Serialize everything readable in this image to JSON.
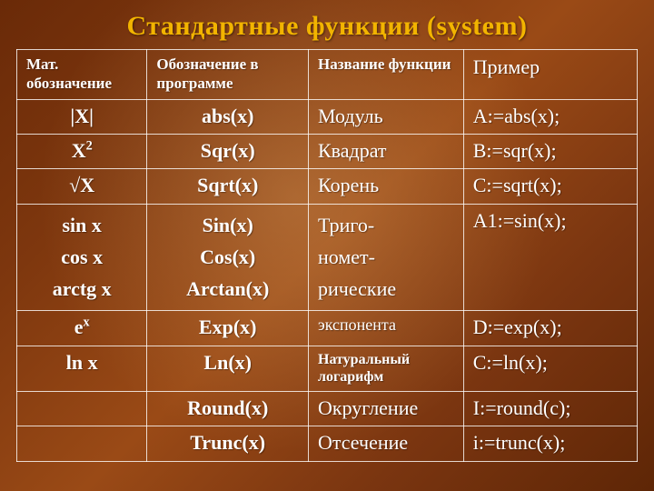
{
  "title": "Стандартные функции (system)",
  "title_color": "#f2b400",
  "text_color": "#ffffff",
  "border_color": "rgba(255,255,255,0.8)",
  "background_colors": [
    "#6a2a08",
    "#9a4a16",
    "#5e2606"
  ],
  "table": {
    "columns": [
      {
        "key": "math",
        "label": "Мат. обозначение",
        "width_pct": 21
      },
      {
        "key": "prog",
        "label": "Обозначение в программе",
        "width_pct": 26
      },
      {
        "key": "name",
        "label": "Название функции",
        "width_pct": 25
      },
      {
        "key": "example",
        "label": "Пример",
        "width_pct": 28
      }
    ],
    "rows": [
      {
        "math": "|X|",
        "prog": "abs(x)",
        "name": "Модуль",
        "example": "A:=abs(x);"
      },
      {
        "math_html": "X<sup>2</sup>",
        "prog": "Sqr(x)",
        "name": "Квадрат",
        "example": "B:=sqr(x);"
      },
      {
        "math": "√X",
        "prog": "Sqrt(x)",
        "name": "Корень",
        "example": "C:=sqrt(x);"
      },
      {
        "math_lines": [
          "sin x",
          "cos x",
          "arctg x"
        ],
        "prog_lines": [
          "Sin(x)",
          "Cos(x)",
          "Arctan(x)"
        ],
        "name_lines": [
          "Триго-",
          "номет-",
          "рические"
        ],
        "example": "A1:=sin(x);"
      },
      {
        "math_html": "e<sup>x</sup>",
        "prog": "Exp(x)",
        "name": "экспонента",
        "name_class": "name-sm",
        "example": "D:=exp(x);"
      },
      {
        "math": "ln x",
        "prog": "Ln(x)",
        "name": "Натуральный логарифм",
        "name_class": "name-xs",
        "example": "C:=ln(x);"
      },
      {
        "math": "",
        "prog": "Round(x)",
        "name": "Округление",
        "example": "I:=round(c);"
      },
      {
        "math": "",
        "prog": "Trunc(x)",
        "name": "Отсечение",
        "example": "i:=trunc(x);"
      }
    ]
  }
}
